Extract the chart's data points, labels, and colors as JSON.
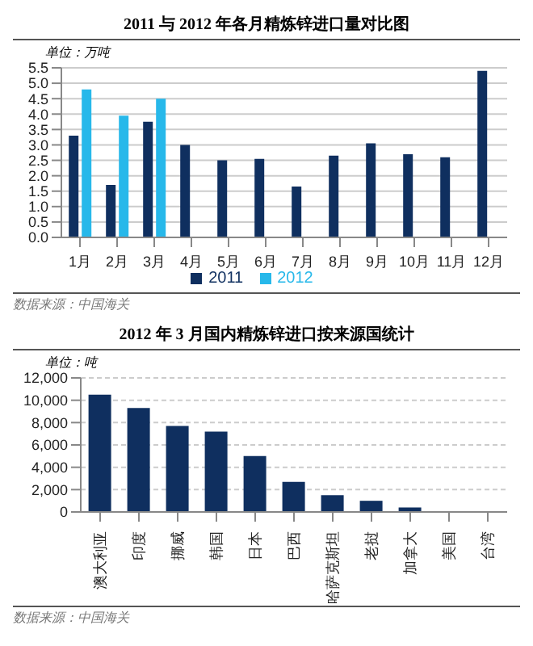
{
  "chart_data": [
    {
      "type": "bar",
      "title": "2011 与 2012 年各月精炼锌进口量对比图",
      "ylabel": "单位：万吨",
      "categories": [
        "1月",
        "2月",
        "3月",
        "4月",
        "5月",
        "6月",
        "7月",
        "8月",
        "9月",
        "10月",
        "11月",
        "12月"
      ],
      "series": [
        {
          "name": "2011",
          "color": "#0f2f5f",
          "values": [
            3.3,
            1.7,
            3.75,
            3.0,
            2.5,
            2.55,
            1.65,
            2.65,
            3.05,
            2.7,
            2.6,
            5.4
          ]
        },
        {
          "name": "2012",
          "color": "#27b8ea",
          "values": [
            4.8,
            3.95,
            4.5,
            null,
            null,
            null,
            null,
            null,
            null,
            null,
            null,
            null
          ]
        }
      ],
      "ylim": [
        0,
        5.5
      ],
      "yticks": [
        {
          "value": 0,
          "label": "0.0"
        },
        {
          "value": 0.5,
          "label": "0.5"
        },
        {
          "value": 1,
          "label": "1.0"
        },
        {
          "value": 1.5,
          "label": "1.5"
        },
        {
          "value": 2,
          "label": "2.0"
        },
        {
          "value": 2.5,
          "label": "2.5"
        },
        {
          "value": 3,
          "label": "3.0"
        },
        {
          "value": 3.5,
          "label": "3.5"
        },
        {
          "value": 4,
          "label": "4.0"
        },
        {
          "value": 4.5,
          "label": "4.5"
        },
        {
          "value": 5,
          "label": "5.0"
        },
        {
          "value": 5.5,
          "label": "5.5"
        }
      ],
      "grid": "y",
      "legend": "bottom",
      "annotations": [
        "数据来源：中国海关"
      ]
    },
    {
      "type": "bar",
      "title": "2012 年 3 月国内精炼锌进口按来源国统计",
      "ylabel": "单位：吨",
      "categories": [
        "澳大利亚",
        "印度",
        "挪威",
        "韩国",
        "日本",
        "巴西",
        "哈萨克斯坦",
        "老挝",
        "加拿大",
        "美国",
        "台湾"
      ],
      "values": [
        10500,
        9300,
        7700,
        7200,
        5000,
        2700,
        1500,
        1000,
        400,
        0,
        0
      ],
      "color": "#0f2f5f",
      "ylim": [
        0,
        12000
      ],
      "yticks": [
        0,
        {
          "value": 2000,
          "label": "2,000"
        },
        {
          "value": 4000,
          "label": "4,000"
        },
        {
          "value": 6000,
          "label": "6,000"
        },
        {
          "value": 8000,
          "label": "8,000"
        },
        {
          "value": 10000,
          "label": "10,000"
        },
        {
          "value": 12000,
          "label": "12,000"
        }
      ],
      "grid": "y",
      "annotations": [
        "数据来源：中国海关"
      ]
    }
  ]
}
